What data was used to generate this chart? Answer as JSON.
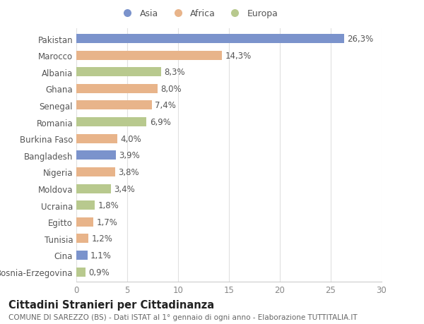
{
  "categories": [
    "Pakistan",
    "Marocco",
    "Albania",
    "Ghana",
    "Senegal",
    "Romania",
    "Burkina Faso",
    "Bangladesh",
    "Nigeria",
    "Moldova",
    "Ucraina",
    "Egitto",
    "Tunisia",
    "Cina",
    "Bosnia-Erzegovina"
  ],
  "values": [
    26.3,
    14.3,
    8.3,
    8.0,
    7.4,
    6.9,
    4.0,
    3.9,
    3.8,
    3.4,
    1.8,
    1.7,
    1.2,
    1.1,
    0.9
  ],
  "continents": [
    "Asia",
    "Africa",
    "Europa",
    "Africa",
    "Africa",
    "Europa",
    "Africa",
    "Asia",
    "Africa",
    "Europa",
    "Europa",
    "Africa",
    "Africa",
    "Asia",
    "Europa"
  ],
  "colors": {
    "Asia": "#7b93cc",
    "Africa": "#e8b48a",
    "Europa": "#b8c98e"
  },
  "legend_labels": [
    "Asia",
    "Africa",
    "Europa"
  ],
  "legend_colors": [
    "#7b93cc",
    "#e8b48a",
    "#b8c98e"
  ],
  "title": "Cittadini Stranieri per Cittadinanza",
  "subtitle": "COMUNE DI SAREZZO (BS) - Dati ISTAT al 1° gennaio di ogni anno - Elaborazione TUTTITALIA.IT",
  "xlim": [
    0,
    30
  ],
  "xticks": [
    0,
    5,
    10,
    15,
    20,
    25,
    30
  ],
  "background_color": "#ffffff",
  "bar_height": 0.55,
  "value_fontsize": 8.5,
  "label_fontsize": 8.5,
  "title_fontsize": 10.5,
  "subtitle_fontsize": 7.5
}
